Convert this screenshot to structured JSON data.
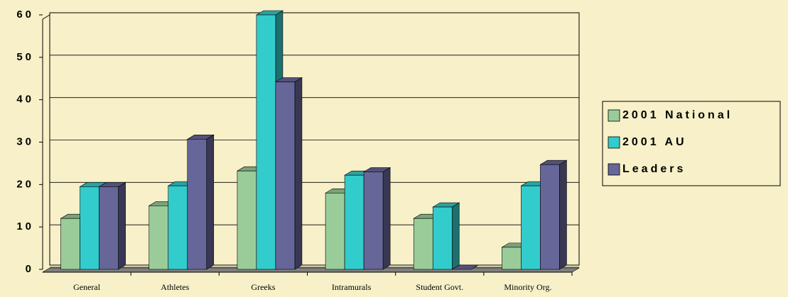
{
  "chart_data": {
    "type": "bar3d",
    "categories": [
      "General",
      "Athletes",
      "Greeks",
      "Intramurals",
      "Student Govt.",
      "Minority Org."
    ],
    "series": [
      {
        "name": "2001 National",
        "color": "#99cc99",
        "values": [
          12,
          15,
          23.2,
          18,
          12,
          5.2
        ]
      },
      {
        "name": "2001 AU",
        "color": "#33cccc",
        "values": [
          19.5,
          19.7,
          60,
          22.2,
          14.7,
          19.7
        ]
      },
      {
        "name": "Leaders",
        "color": "#666699",
        "values": [
          19.5,
          30.7,
          44.2,
          23,
          0,
          24.7
        ]
      }
    ],
    "ylim": [
      0,
      60
    ],
    "yticks": [
      0,
      10,
      20,
      30,
      40,
      50,
      60
    ],
    "grid": true,
    "legend": "right"
  }
}
